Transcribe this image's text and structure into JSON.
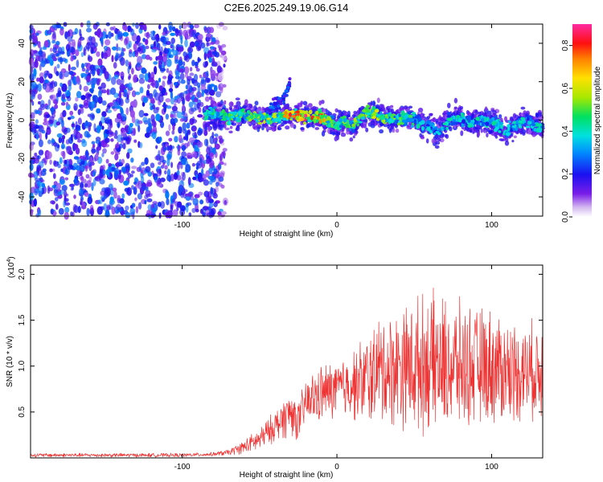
{
  "title": "C2E6.2025.249.19.06.G14",
  "chart_data": [
    {
      "type": "heatmap",
      "name": "spectrogram",
      "xlabel": "Height of straight line (km)",
      "ylabel": "Frequency (Hz)",
      "xlim": [
        -198,
        133
      ],
      "ylim": [
        -50,
        50
      ],
      "xticks": [
        -100,
        0,
        100
      ],
      "yticks": [
        -40,
        -20,
        0,
        20,
        40
      ],
      "xtick_labels": [
        "-100",
        "0",
        "100"
      ],
      "ytick_labels": [
        "-40",
        "-20",
        "0",
        "20",
        "40"
      ],
      "noise_region_x": [
        -198,
        -72
      ],
      "ridge": {
        "x": [
          -85,
          -80,
          -70,
          -60,
          -50,
          -40,
          -35,
          -30,
          -25,
          -20,
          -10,
          -5,
          0,
          5,
          10,
          15,
          20,
          30,
          40,
          50,
          55,
          60,
          65,
          70,
          75,
          80,
          90,
          100,
          110,
          120,
          133
        ],
        "freq": [
          2,
          4,
          1,
          3,
          1,
          1,
          3,
          2,
          2,
          2,
          2,
          -1,
          -2,
          -1,
          -3,
          2,
          4,
          1,
          1,
          1,
          -2,
          -2,
          -7,
          -1,
          0,
          1,
          -1,
          -1,
          -6,
          0,
          -4
        ],
        "peak_amp": [
          0.45,
          0.5,
          0.55,
          0.6,
          0.6,
          0.62,
          0.7,
          0.85,
          0.9,
          0.9,
          0.8,
          0.6,
          0.55,
          0.6,
          0.55,
          0.6,
          0.65,
          0.6,
          0.55,
          0.5,
          0.45,
          0.45,
          0.4,
          0.45,
          0.45,
          0.45,
          0.45,
          0.45,
          0.45,
          0.45,
          0.45
        ]
      },
      "branch": {
        "x": [
          -45,
          -40,
          -35,
          -30
        ],
        "freq": [
          5,
          8,
          11,
          20
        ]
      },
      "colorbar": {
        "label": "Normalized spectral amplitude",
        "range": [
          0.0,
          0.9
        ],
        "ticks": [
          0.0,
          0.2,
          0.4,
          0.6,
          0.8
        ],
        "tick_labels": [
          "0.0",
          "0.2",
          "0.4",
          "0.6",
          "0.8"
        ]
      }
    },
    {
      "type": "line",
      "name": "snr",
      "xlabel": "Height of straight line (km)",
      "ylabel": "SNR (10 * v/v)",
      "scale_label": "(x10",
      "scale_exp": "4",
      "scale_close": ")",
      "color": "#ee3333",
      "xlim": [
        -198,
        133
      ],
      "ylim": [
        0,
        2.1
      ],
      "xticks": [
        -100,
        0,
        100
      ],
      "xtick_labels": [
        "-100",
        "0",
        "100"
      ],
      "yticks": [
        0.5,
        1.0,
        1.5,
        2.0
      ],
      "ytick_labels": [
        "0.5",
        "1.0",
        "1.5",
        "2.0"
      ],
      "envelope": {
        "x": [
          -198,
          -150,
          -100,
          -80,
          -70,
          -60,
          -50,
          -40,
          -35,
          -30,
          -25,
          -20,
          -10,
          0,
          10,
          20,
          25,
          30,
          40,
          50,
          60,
          70,
          80,
          90,
          100,
          110,
          120,
          133
        ],
        "mean": [
          0.03,
          0.03,
          0.03,
          0.04,
          0.06,
          0.12,
          0.2,
          0.35,
          0.42,
          0.5,
          0.4,
          0.6,
          0.7,
          0.75,
          0.8,
          0.85,
          0.95,
          0.95,
          1.0,
          1.0,
          1.05,
          1.0,
          1.0,
          1.0,
          1.0,
          0.95,
          0.95,
          0.95
        ],
        "spread": [
          0.02,
          0.02,
          0.02,
          0.02,
          0.03,
          0.07,
          0.12,
          0.16,
          0.2,
          0.25,
          0.2,
          0.25,
          0.3,
          0.3,
          0.35,
          0.5,
          0.5,
          0.6,
          0.6,
          0.7,
          0.7,
          0.7,
          0.65,
          0.6,
          0.6,
          0.55,
          0.5,
          0.5
        ]
      }
    }
  ]
}
